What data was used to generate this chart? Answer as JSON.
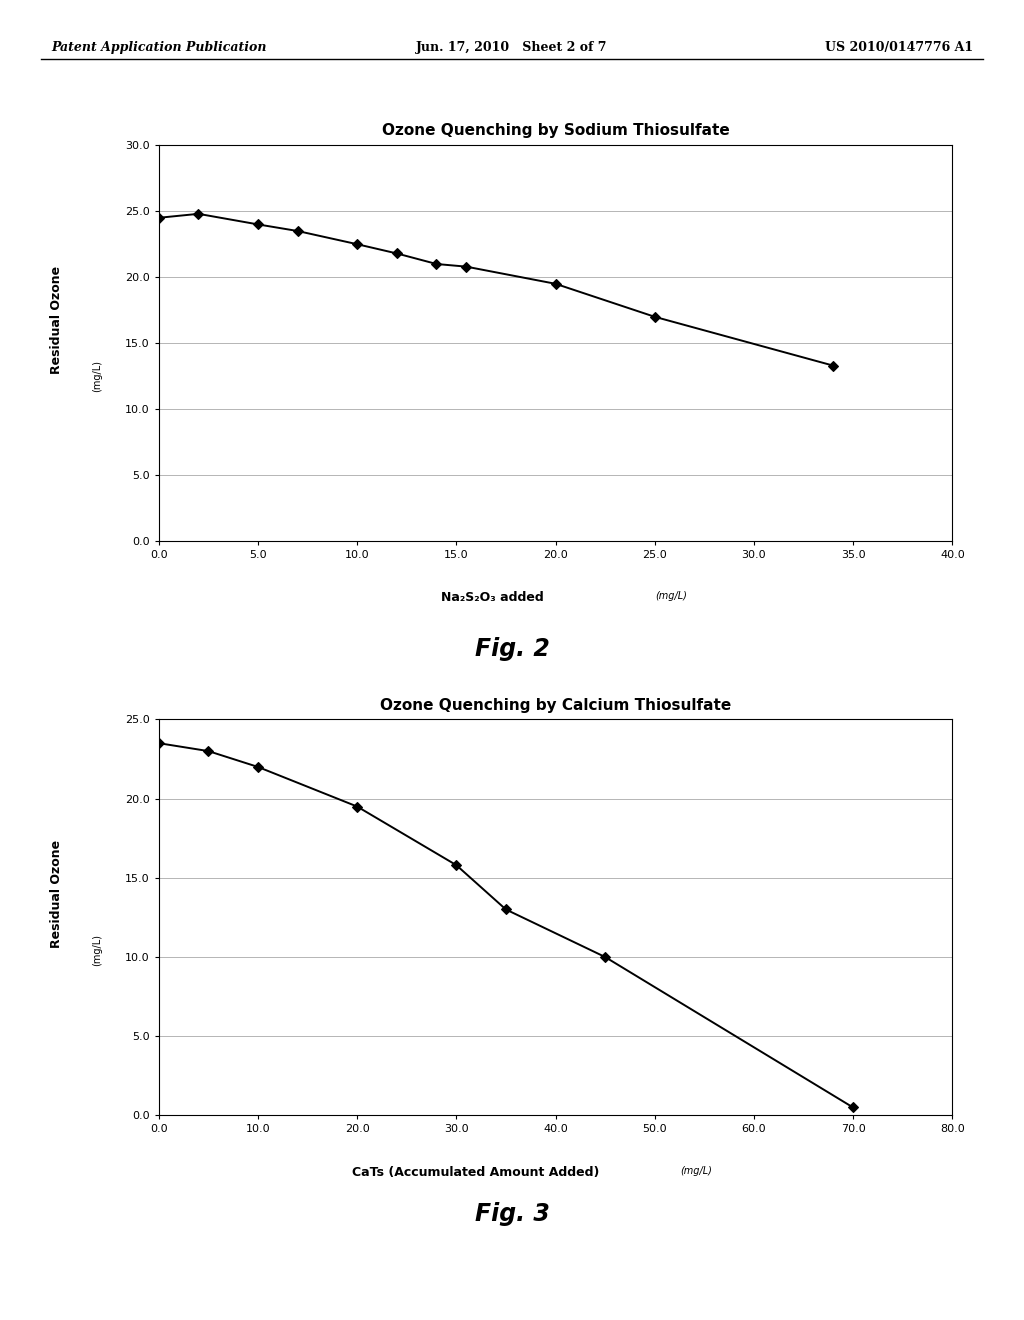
{
  "chart1": {
    "title": "Ozone Quenching by Sodium Thiosulfate",
    "x": [
      0.0,
      2.0,
      5.0,
      7.0,
      10.0,
      12.0,
      14.0,
      15.5,
      20.0,
      25.0,
      34.0
    ],
    "y": [
      24.5,
      24.8,
      24.0,
      23.5,
      22.5,
      21.8,
      21.0,
      20.8,
      19.5,
      17.0,
      13.3
    ],
    "xlabel_bold": "Na₂S₂O₃ added",
    "xlabel_italic_small": "(mg/L)",
    "ylabel": "Residual Ozone",
    "ylabel_small": "(mg/L)",
    "xlim": [
      0.0,
      40.0
    ],
    "ylim": [
      0.0,
      30.0
    ],
    "xticks": [
      0.0,
      5.0,
      10.0,
      15.0,
      20.0,
      25.0,
      30.0,
      35.0,
      40.0
    ],
    "yticks": [
      0.0,
      5.0,
      10.0,
      15.0,
      20.0,
      25.0,
      30.0
    ]
  },
  "chart2": {
    "title": "Ozone Quenching by Calcium Thiosulfate",
    "x": [
      0.0,
      5.0,
      10.0,
      20.0,
      30.0,
      35.0,
      45.0,
      70.0
    ],
    "y": [
      23.5,
      23.0,
      22.0,
      19.5,
      15.8,
      13.0,
      10.0,
      0.5
    ],
    "xlabel_bold": "CaTs (Accumulated Amount Added)",
    "xlabel_italic_small": "(mg/L)",
    "ylabel": "Residual Ozone",
    "ylabel_small": "(mg/L)",
    "xlim": [
      0.0,
      80.0
    ],
    "ylim": [
      0.0,
      25.0
    ],
    "xticks": [
      0.0,
      10.0,
      20.0,
      30.0,
      40.0,
      50.0,
      60.0,
      70.0,
      80.0
    ],
    "yticks": [
      0.0,
      5.0,
      10.0,
      15.0,
      20.0,
      25.0
    ]
  },
  "fig2_label": "Fig. 2",
  "fig3_label": "Fig. 3",
  "header_left": "Patent Application Publication",
  "header_center": "Jun. 17, 2010   Sheet 2 of 7",
  "header_right": "US 2010/0147776 A1",
  "line_color": "#000000",
  "marker_color": "#000000",
  "grid_color": "#999999",
  "bg_color": "#ffffff"
}
